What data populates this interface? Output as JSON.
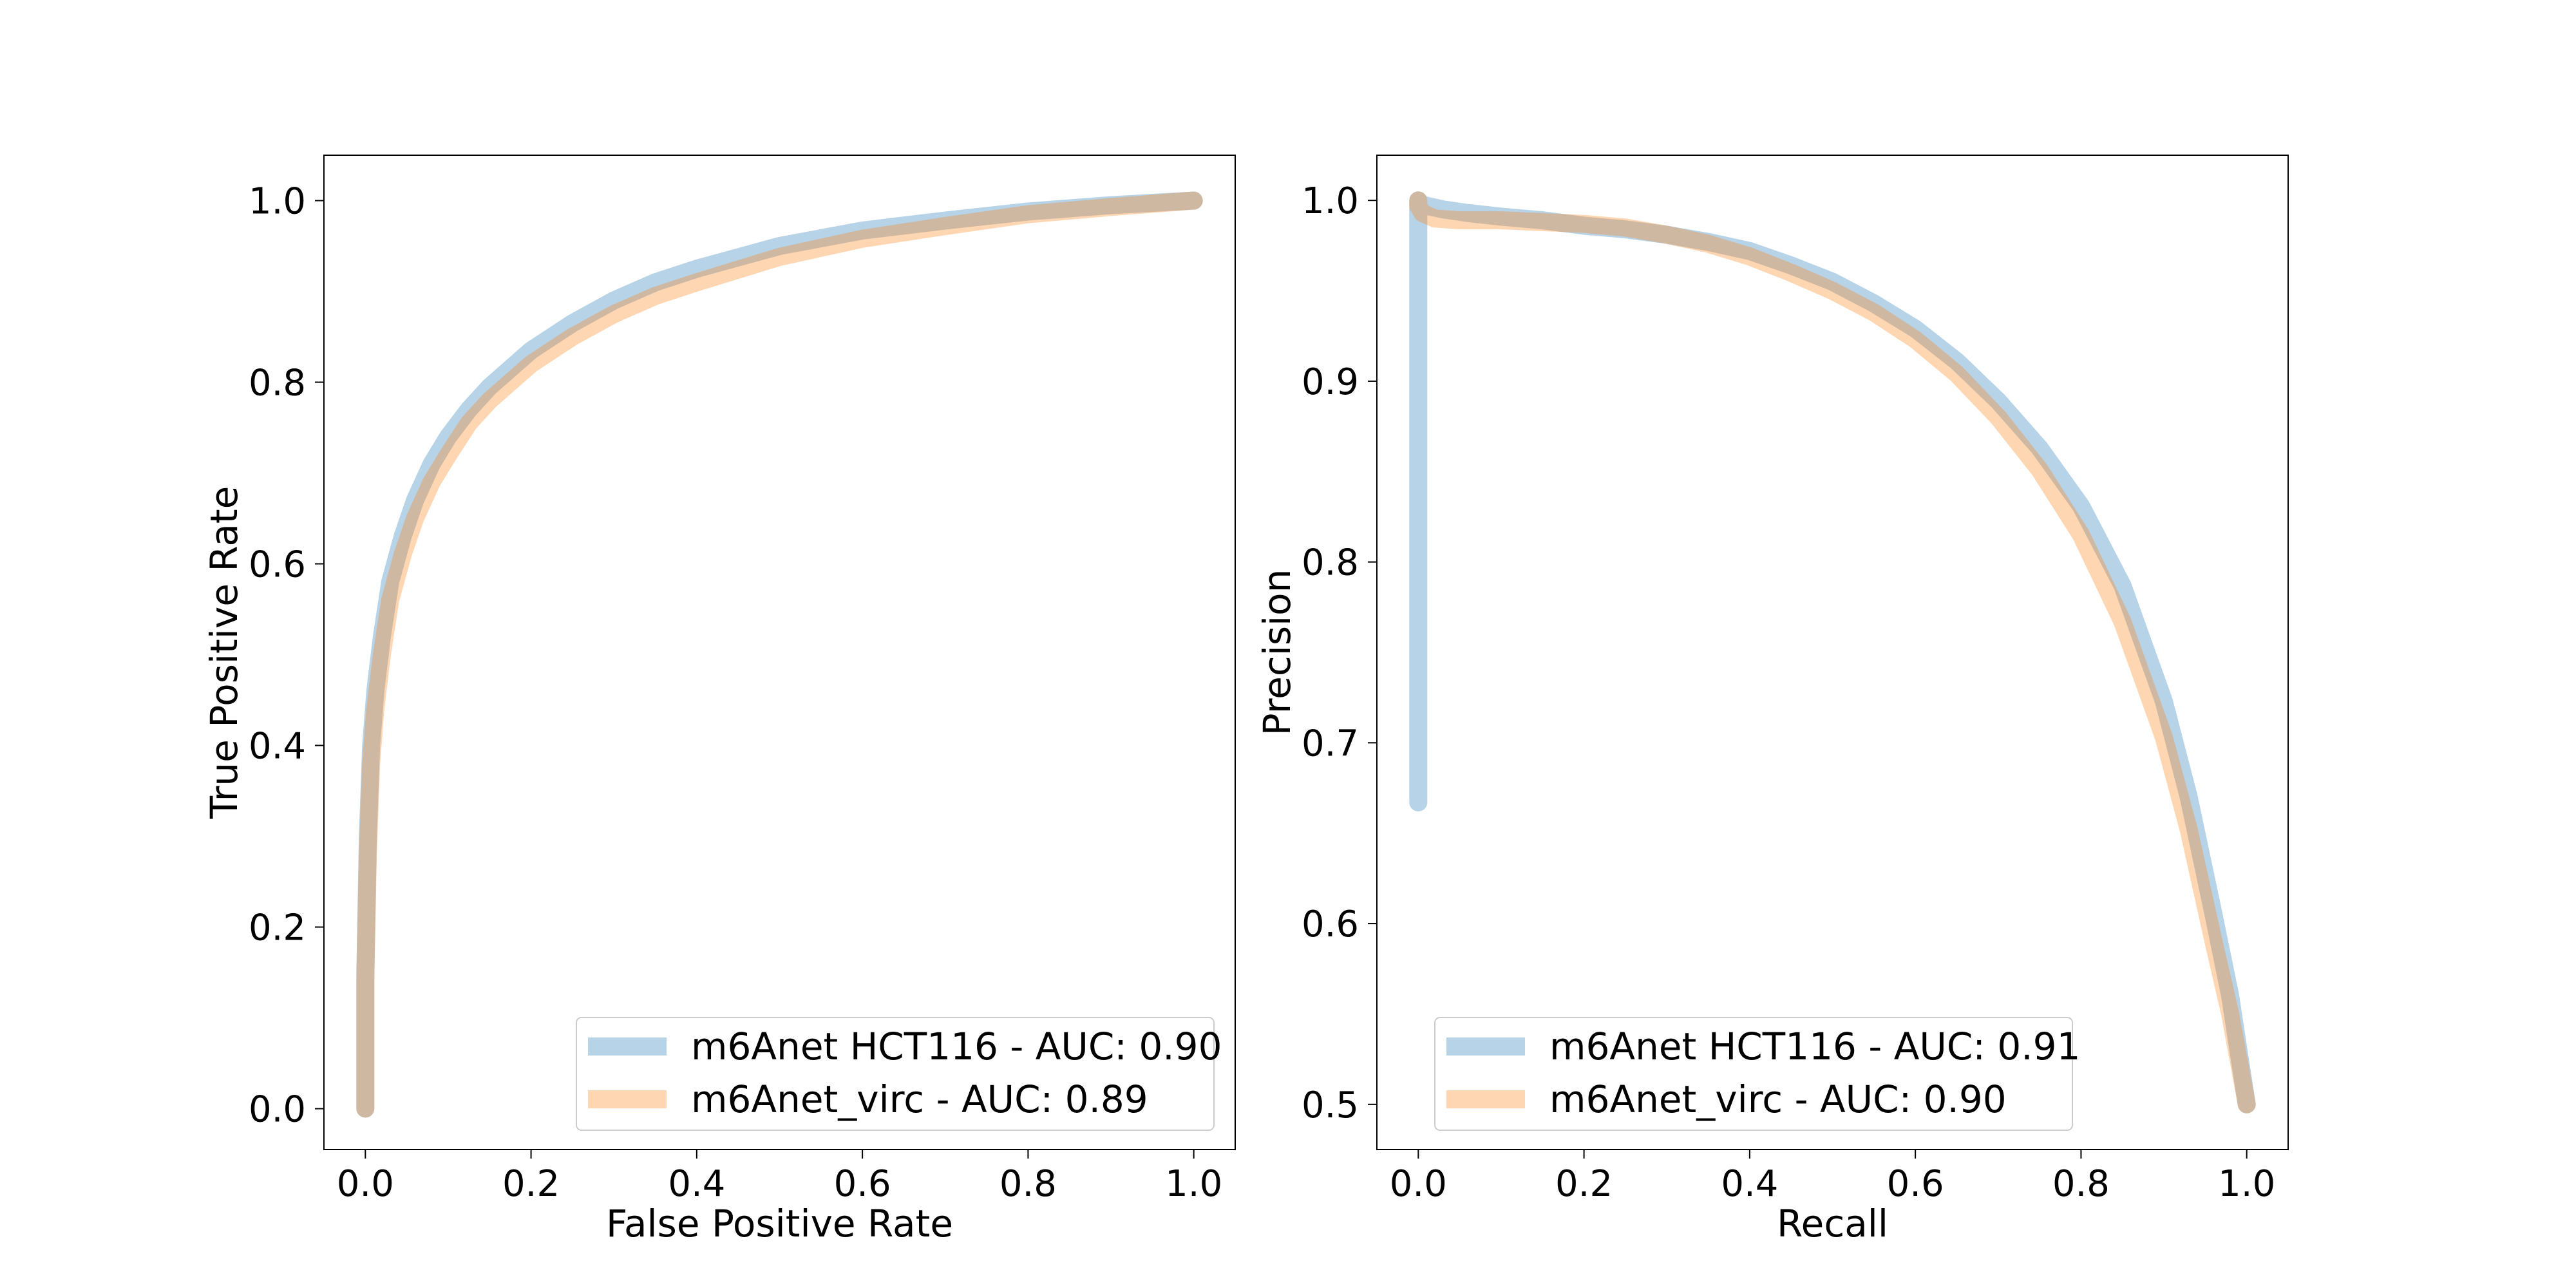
{
  "chart_data": [
    {
      "type": "line",
      "title": "",
      "xlabel": "False Positive Rate",
      "ylabel": "True Positive Rate",
      "xlim": [
        -0.05,
        1.05
      ],
      "ylim": [
        -0.045,
        1.05
      ],
      "xticks": [
        0.0,
        0.2,
        0.4,
        0.6,
        0.8,
        1.0
      ],
      "xtick_labels": [
        "0.0",
        "0.2",
        "0.4",
        "0.6",
        "0.8",
        "1.0"
      ],
      "yticks": [
        0.0,
        0.2,
        0.4,
        0.6,
        0.8,
        1.0
      ],
      "ytick_labels": [
        "0.0",
        "0.2",
        "0.4",
        "0.6",
        "0.8",
        "1.0"
      ],
      "grid": false,
      "legend_position": "lower-right",
      "series": [
        {
          "name": "m6Anet HCT116 - AUC: 0.90",
          "color": "#1f77b4",
          "x": [
            0.0,
            0.0,
            0.003,
            0.007,
            0.012,
            0.02,
            0.03,
            0.045,
            0.06,
            0.08,
            0.1,
            0.125,
            0.15,
            0.2,
            0.25,
            0.3,
            0.35,
            0.4,
            0.5,
            0.6,
            0.7,
            0.8,
            0.9,
            1.0
          ],
          "y": [
            0.0,
            0.15,
            0.3,
            0.4,
            0.46,
            0.52,
            0.58,
            0.63,
            0.67,
            0.71,
            0.74,
            0.77,
            0.795,
            0.835,
            0.865,
            0.89,
            0.91,
            0.925,
            0.95,
            0.967,
            0.978,
            0.988,
            0.995,
            1.0
          ]
        },
        {
          "name": "m6Anet_virc - AUC: 0.89",
          "color": "#ff7f0e",
          "x": [
            0.0,
            0.0,
            0.003,
            0.007,
            0.012,
            0.02,
            0.03,
            0.045,
            0.06,
            0.08,
            0.1,
            0.125,
            0.15,
            0.2,
            0.25,
            0.3,
            0.35,
            0.4,
            0.5,
            0.6,
            0.7,
            0.8,
            0.9,
            1.0
          ],
          "y": [
            0.0,
            0.14,
            0.28,
            0.38,
            0.44,
            0.5,
            0.56,
            0.61,
            0.65,
            0.69,
            0.72,
            0.755,
            0.78,
            0.82,
            0.85,
            0.875,
            0.895,
            0.91,
            0.938,
            0.958,
            0.972,
            0.985,
            0.993,
            1.0
          ]
        }
      ]
    },
    {
      "type": "line",
      "title": "",
      "xlabel": "Recall",
      "ylabel": "Precision",
      "xlim": [
        -0.05,
        1.05
      ],
      "ylim": [
        0.475,
        1.025
      ],
      "xticks": [
        0.0,
        0.2,
        0.4,
        0.6,
        0.8,
        1.0
      ],
      "xtick_labels": [
        "0.0",
        "0.2",
        "0.4",
        "0.6",
        "0.8",
        "1.0"
      ],
      "yticks": [
        0.5,
        0.6,
        0.7,
        0.8,
        0.9,
        1.0
      ],
      "ytick_labels": [
        "0.5",
        "0.6",
        "0.7",
        "0.8",
        "0.9",
        "1.0"
      ],
      "grid": false,
      "legend_position": "lower-left",
      "series": [
        {
          "name": "m6Anet HCT116 - AUC: 0.91",
          "color": "#1f77b4",
          "x": [
            0.0,
            0.0,
            0.0,
            0.003,
            0.01,
            0.03,
            0.06,
            0.1,
            0.15,
            0.2,
            0.25,
            0.3,
            0.35,
            0.4,
            0.45,
            0.5,
            0.55,
            0.6,
            0.65,
            0.7,
            0.75,
            0.8,
            0.85,
            0.9,
            0.93,
            0.96,
            0.98,
            0.99,
            1.0
          ],
          "y": [
            0.667,
            1.0,
            1.0,
            0.998,
            0.997,
            0.995,
            0.993,
            0.991,
            0.989,
            0.986,
            0.984,
            0.981,
            0.977,
            0.972,
            0.964,
            0.955,
            0.943,
            0.929,
            0.911,
            0.889,
            0.863,
            0.831,
            0.787,
            0.723,
            0.67,
            0.605,
            0.56,
            0.53,
            0.5
          ]
        },
        {
          "name": "m6Anet_virc - AUC: 0.90",
          "color": "#ff7f0e",
          "x": [
            0.0,
            0.0,
            0.005,
            0.02,
            0.05,
            0.1,
            0.15,
            0.2,
            0.25,
            0.3,
            0.35,
            0.4,
            0.45,
            0.5,
            0.55,
            0.6,
            0.65,
            0.7,
            0.75,
            0.8,
            0.85,
            0.9,
            0.93,
            0.96,
            0.98,
            0.99,
            1.0
          ],
          "y": [
            1.0,
            0.997,
            0.993,
            0.99,
            0.989,
            0.989,
            0.988,
            0.987,
            0.985,
            0.981,
            0.976,
            0.969,
            0.96,
            0.95,
            0.938,
            0.923,
            0.904,
            0.88,
            0.851,
            0.815,
            0.767,
            0.703,
            0.652,
            0.59,
            0.55,
            0.525,
            0.5
          ]
        }
      ]
    }
  ]
}
